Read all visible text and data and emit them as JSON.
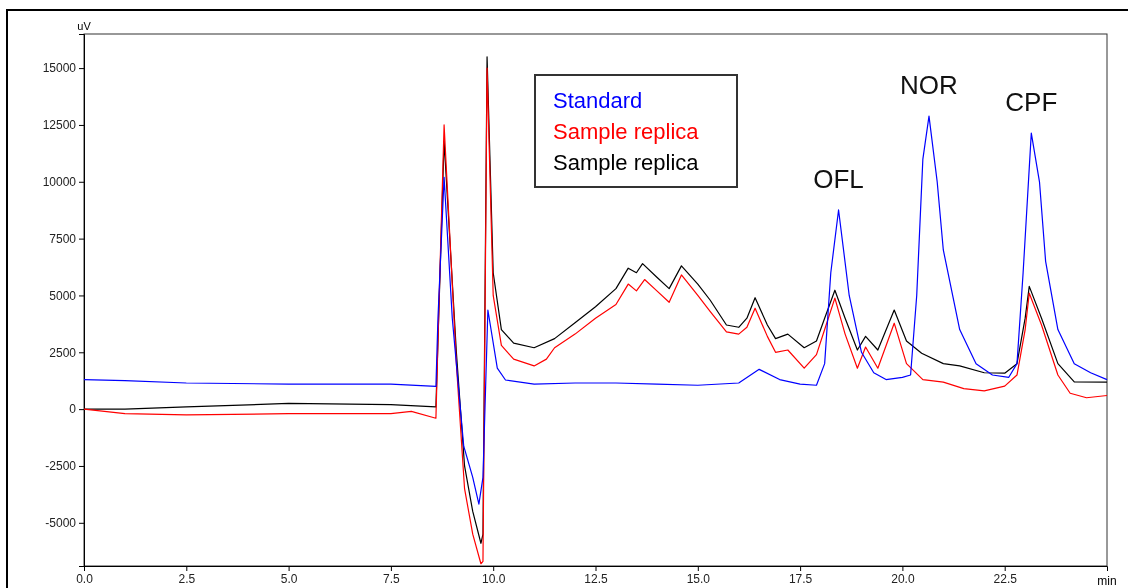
{
  "chart_data": {
    "type": "line",
    "xlabel": "min",
    "ylabel": "uV",
    "xlim": [
      0,
      25
    ],
    "xticks": [
      {
        "value": 0,
        "label": "0.0"
      },
      2.5,
      {
        "value": 5,
        "label": "5.0"
      },
      7.5,
      {
        "value": 10,
        "label": "10.0"
      },
      12.5,
      {
        "value": 15,
        "label": "15.0"
      },
      17.5,
      {
        "value": 20,
        "label": "20.0"
      },
      22.5
    ],
    "ylim": [
      -6900,
      16500
    ],
    "yticks": [
      -5000,
      -2500,
      0,
      2500,
      5000,
      7500,
      10000,
      12500,
      15000
    ],
    "grid": false,
    "legend": "top",
    "marker": "none",
    "line_style": "solid",
    "annotations": [
      {
        "text": "OFL",
        "x": 18.44,
        "y": 8760
      },
      {
        "text": "NOR",
        "x": 20.65,
        "y": 12890
      },
      {
        "text": "CPF",
        "x": 23.15,
        "y": 12140
      }
    ],
    "series": [
      {
        "name": "Standard",
        "color": "#0000ff",
        "x": [
          0,
          1,
          2.5,
          5,
          7.5,
          8.6,
          8.65,
          8.8,
          9.0,
          9.28,
          9.5,
          9.65,
          9.75,
          9.87,
          10.1,
          10.3,
          11,
          12,
          13,
          14,
          15,
          16,
          16.5,
          17,
          17.5,
          17.9,
          18.1,
          18.25,
          18.44,
          18.7,
          19.0,
          19.3,
          19.6,
          20.0,
          20.2,
          20.35,
          20.5,
          20.65,
          20.85,
          21.0,
          21.4,
          21.8,
          22.2,
          22.6,
          22.8,
          22.95,
          23.15,
          23.35,
          23.5,
          23.8,
          24.2,
          24.6,
          25
        ],
        "values": [
          1300,
          1250,
          1150,
          1100,
          1100,
          1000,
          4000,
          10200,
          4000,
          -1630,
          -3000,
          -4180,
          -3000,
          4360,
          1800,
          1280,
          1100,
          1150,
          1150,
          1100,
          1050,
          1150,
          1750,
          1300,
          1100,
          1050,
          2000,
          6000,
          8760,
          5000,
          2500,
          1600,
          1300,
          1400,
          1500,
          5000,
          11000,
          12890,
          10000,
          7000,
          3500,
          2000,
          1500,
          1400,
          2000,
          6000,
          12140,
          10000,
          6500,
          3500,
          2000,
          1600,
          1300
        ]
      },
      {
        "name": "Sample replica",
        "color": "#ff0000",
        "x": [
          0,
          1,
          2.5,
          5,
          7.5,
          8.0,
          8.6,
          8.65,
          8.8,
          9.1,
          9.3,
          9.5,
          9.7,
          9.75,
          9.85,
          10.0,
          10.2,
          10.5,
          11.0,
          11.3,
          11.5,
          12,
          12.5,
          13.0,
          13.3,
          13.5,
          13.7,
          14.0,
          14.3,
          14.6,
          15.0,
          15.3,
          15.7,
          16.0,
          16.2,
          16.4,
          16.7,
          16.9,
          17.2,
          17.6,
          17.9,
          18.1,
          18.35,
          18.6,
          18.9,
          19.1,
          19.4,
          19.8,
          20.1,
          20.5,
          21.0,
          21.5,
          22.0,
          22.5,
          22.8,
          23.0,
          23.1,
          23.4,
          23.8,
          24.1,
          24.5,
          25
        ],
        "values": [
          0,
          -200,
          -250,
          -200,
          -200,
          -100,
          -400,
          3000,
          12500,
          2000,
          -3500,
          -5500,
          -6800,
          -6700,
          15000,
          5000,
          2800,
          2200,
          1900,
          2200,
          2700,
          3300,
          4000,
          4600,
          5500,
          5200,
          5700,
          5200,
          4700,
          5900,
          5000,
          4300,
          3400,
          3300,
          3600,
          4440,
          3200,
          2500,
          2600,
          1800,
          2400,
          3500,
          4880,
          3300,
          1800,
          2730,
          1800,
          3780,
          2000,
          1300,
          1190,
          900,
          800,
          1010,
          1500,
          3500,
          5100,
          3700,
          1500,
          700,
          500,
          600
        ]
      },
      {
        "name": "Sample replica",
        "color": "#000000",
        "x": [
          0,
          1,
          2.5,
          5,
          7.5,
          8.6,
          8.65,
          8.8,
          9.1,
          9.3,
          9.5,
          9.7,
          9.75,
          9.85,
          10.0,
          10.2,
          10.5,
          11.0,
          11.5,
          12,
          12.5,
          13.0,
          13.3,
          13.5,
          13.65,
          14.0,
          14.3,
          14.6,
          15.0,
          15.3,
          15.7,
          16.0,
          16.2,
          16.4,
          16.7,
          16.9,
          17.2,
          17.6,
          17.9,
          18.1,
          18.35,
          18.6,
          18.9,
          19.1,
          19.4,
          19.8,
          20.1,
          20.47,
          21.0,
          21.4,
          22.0,
          22.5,
          22.8,
          23.0,
          23.1,
          23.4,
          23.8,
          24.2,
          25
        ],
        "values": [
          0,
          0,
          100,
          250,
          200,
          100,
          3000,
          11800,
          2500,
          -2500,
          -4500,
          -5900,
          -5500,
          15500,
          6000,
          3500,
          2900,
          2700,
          3100,
          3800,
          4500,
          5300,
          6200,
          6000,
          6400,
          5800,
          5300,
          6300,
          5500,
          4800,
          3700,
          3600,
          4000,
          4900,
          3700,
          3100,
          3300,
          2700,
          3000,
          4000,
          5230,
          4000,
          2600,
          3200,
          2600,
          4360,
          3000,
          2460,
          2000,
          1900,
          1600,
          1580,
          2000,
          4000,
          5400,
          4000,
          2000,
          1200,
          1190
        ]
      }
    ]
  }
}
